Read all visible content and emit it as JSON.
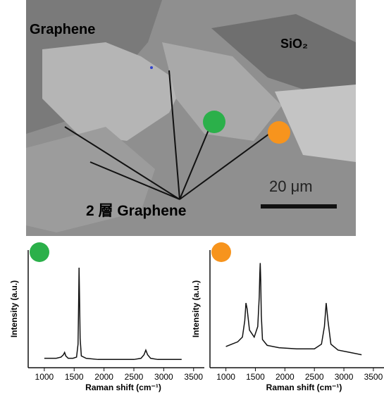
{
  "image": {
    "labels": [
      "Graphene",
      "SiO₂",
      "2 層 Graphene"
    ],
    "scale_bar": "20 μm",
    "spot_colors": [
      "#2bb04a",
      "#f7941d"
    ]
  },
  "chart_data": [
    {
      "type": "line",
      "ylabel": "Intensity (a.u.)",
      "xlabel": "Raman shift (cm⁻¹)",
      "badge_color": "#2bb04a",
      "xlim": [
        730,
        3680
      ],
      "ylim": [
        0,
        100
      ],
      "xticks": [
        1000,
        1500,
        2000,
        2500,
        3000,
        3500
      ],
      "x": [
        1000,
        1100,
        1200,
        1280,
        1320,
        1340,
        1360,
        1400,
        1480,
        1540,
        1565,
        1575,
        1582,
        1590,
        1600,
        1620,
        1700,
        1900,
        2200,
        2500,
        2620,
        2670,
        2700,
        2730,
        2780,
        2900,
        3100,
        3300
      ],
      "series": [
        {
          "color": "#111111",
          "values": [
            8,
            8,
            8,
            9,
            11,
            13,
            10,
            8,
            8,
            9,
            20,
            55,
            85,
            60,
            25,
            10,
            8,
            7,
            7,
            7,
            8,
            11,
            15,
            11,
            8,
            7,
            7,
            7
          ]
        }
      ]
    },
    {
      "type": "line",
      "ylabel": "Intensity (a.u.)",
      "xlabel": "Raman shift (cm⁻¹)",
      "badge_color": "#f7941d",
      "xlim": [
        730,
        3680
      ],
      "ylim": [
        0,
        100
      ],
      "xticks": [
        1000,
        1500,
        2000,
        2500,
        3000,
        3500
      ],
      "x": [
        1000,
        1100,
        1200,
        1280,
        1320,
        1340,
        1360,
        1400,
        1480,
        1540,
        1565,
        1575,
        1582,
        1590,
        1600,
        1620,
        1700,
        1900,
        2200,
        2500,
        2620,
        2670,
        2700,
        2730,
        2780,
        2900,
        3100,
        3300
      ],
      "series": [
        {
          "color": "#111111",
          "values": [
            18,
            20,
            22,
            26,
            40,
            55,
            50,
            32,
            26,
            35,
            60,
            80,
            89,
            75,
            45,
            24,
            19,
            17,
            16,
            16,
            20,
            35,
            55,
            40,
            20,
            15,
            13,
            11
          ]
        }
      ]
    }
  ]
}
